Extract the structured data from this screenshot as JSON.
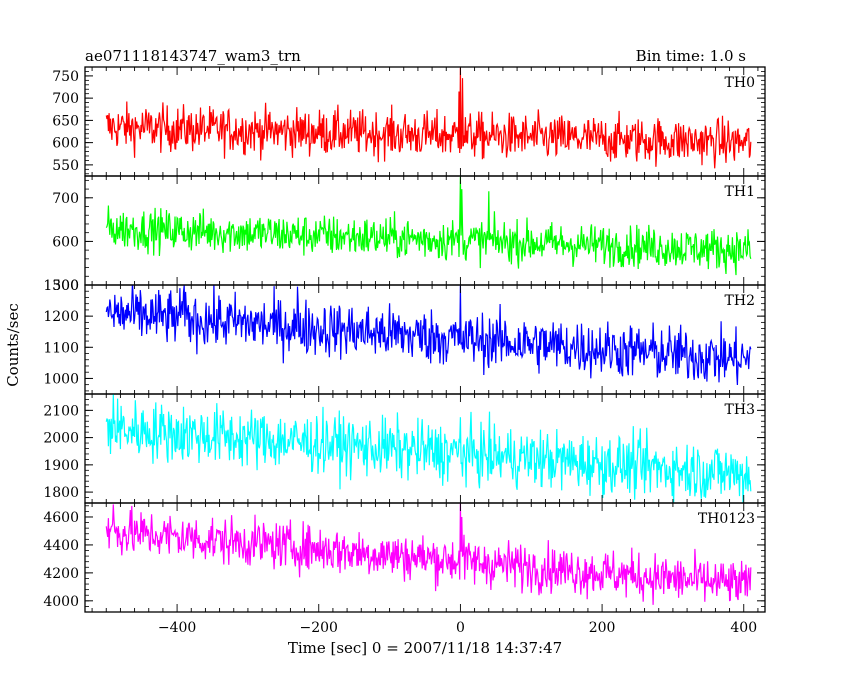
{
  "chart_data": {
    "type": "line",
    "title": "ae071118143747_wam3_trn",
    "subtitle": "Bin time: 1.0 s",
    "xlabel": "Time [sec] 0 = 2007/11/18 14:37:47",
    "ylabel": "Counts/sec",
    "xlim": [
      -530,
      430
    ],
    "xticks": [
      -400,
      -200,
      0,
      200,
      400
    ],
    "x_range": [
      -500,
      410
    ],
    "x_step": 1,
    "grid": false,
    "panels": [
      {
        "name": "TH0",
        "color": "#ff0000",
        "ylim": [
          525,
          770
        ],
        "yticks": [
          550,
          600,
          650,
          700,
          750
        ],
        "start_value": 635,
        "end_value": 600,
        "noise": 26,
        "spikes": [
          {
            "x": 0,
            "value": 768
          },
          {
            "x": 3,
            "value": 745
          },
          {
            "x": -2,
            "value": 715
          }
        ]
      },
      {
        "name": "TH1",
        "color": "#00ff00",
        "ylim": [
          500,
          750
        ],
        "yticks": [
          500,
          600,
          700
        ],
        "start_value": 630,
        "end_value": 580,
        "noise": 24,
        "spikes": [
          {
            "x": 0,
            "value": 748
          },
          {
            "x": 2,
            "value": 720
          },
          {
            "x": 40,
            "value": 715
          }
        ]
      },
      {
        "name": "TH2",
        "color": "#0000ff",
        "ylim": [
          950,
          1300
        ],
        "yticks": [
          1000,
          1100,
          1200,
          1300
        ],
        "start_value": 1210,
        "end_value": 1060,
        "noise": 45,
        "spikes": [
          {
            "x": 0,
            "value": 1298
          },
          {
            "x": -230,
            "value": 1295
          },
          {
            "x": -390,
            "value": 1300
          }
        ]
      },
      {
        "name": "TH3",
        "color": "#00ffff",
        "ylim": [
          1760,
          2160
        ],
        "yticks": [
          1800,
          1900,
          2000,
          2100
        ],
        "start_value": 2035,
        "end_value": 1865,
        "noise": 55,
        "spikes": [
          {
            "x": -490,
            "value": 2160
          },
          {
            "x": 0,
            "value": 2075
          }
        ]
      },
      {
        "name": "TH0123",
        "color": "#ff00ff",
        "ylim": [
          3920,
          4700
        ],
        "yticks": [
          4000,
          4200,
          4400,
          4600
        ],
        "start_value": 4500,
        "end_value": 4110,
        "noise": 85,
        "spikes": [
          {
            "x": 0,
            "value": 4700
          },
          {
            "x": 2,
            "value": 4600
          },
          {
            "x": -490,
            "value": 4690
          }
        ]
      }
    ]
  }
}
